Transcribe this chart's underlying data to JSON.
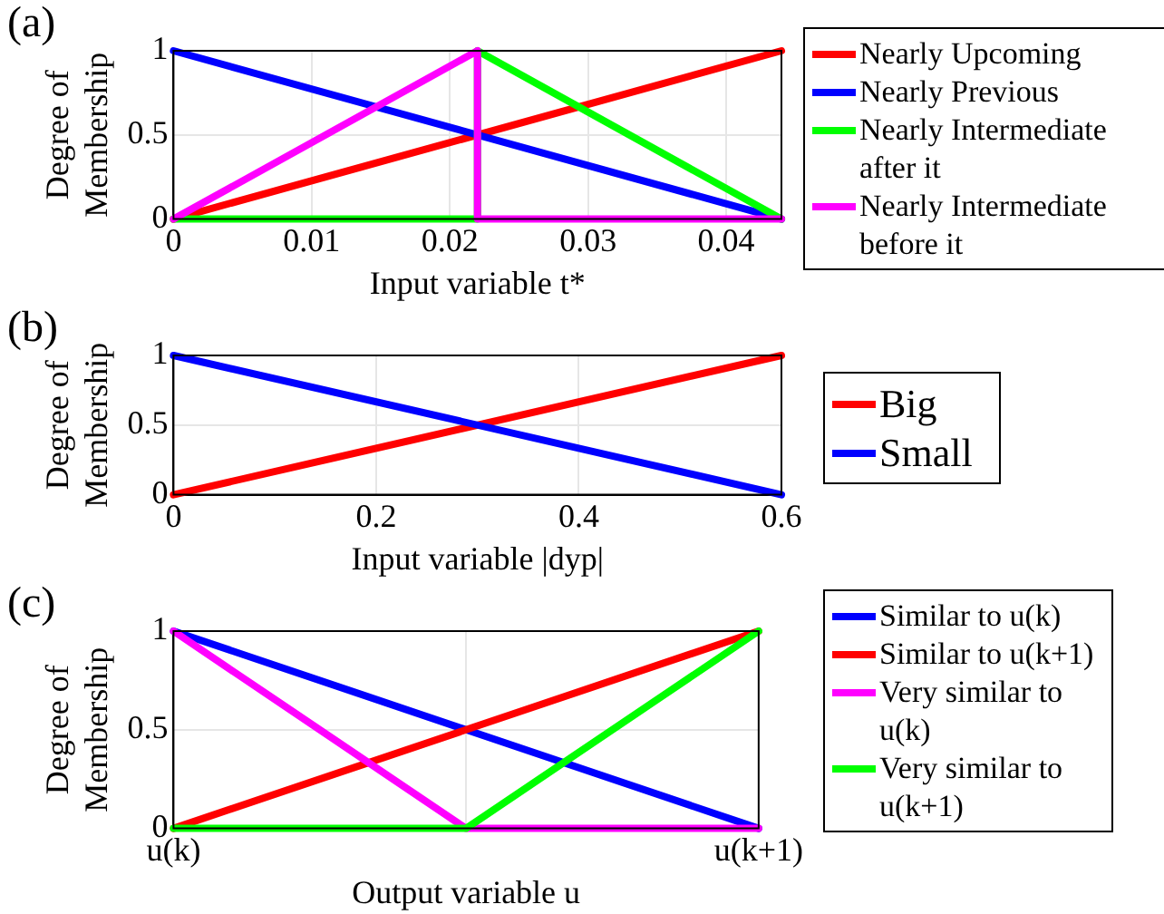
{
  "chart_data": [
    {
      "type": "line",
      "title": "(a)",
      "xlabel": "Input variable t*",
      "ylabel": "Degree of Membership",
      "xlim": [
        0,
        0.044
      ],
      "xticks": [
        0,
        0.01,
        0.02,
        0.03,
        0.04
      ],
      "ylim": [
        0,
        1
      ],
      "yticks": [
        0,
        0.5,
        1
      ],
      "grid": true,
      "legend": "right",
      "marker": "none",
      "line_style": "solid",
      "series": [
        {
          "name": "Nearly Upcoming",
          "color": "#ff0000",
          "x": [
            0,
            0.044
          ],
          "values": [
            0,
            1
          ]
        },
        {
          "name": "Nearly Previous",
          "color": "#0000ff",
          "x": [
            0,
            0.044
          ],
          "values": [
            1,
            0
          ]
        },
        {
          "name": "Nearly Intermediate after it",
          "color": "#00ff00",
          "x": [
            0,
            0.022,
            0.022,
            0.044
          ],
          "values": [
            0,
            0,
            1,
            0
          ]
        },
        {
          "name": "Nearly Intermediate before it",
          "color": "#ff00ff",
          "x": [
            0,
            0.022,
            0.022,
            0.044
          ],
          "values": [
            0,
            1,
            0,
            0
          ]
        }
      ]
    },
    {
      "type": "line",
      "title": "(b)",
      "xlabel": "Input variable |dyp|",
      "ylabel": "Degree of Membership",
      "xlim": [
        0,
        0.6
      ],
      "xticks": [
        0,
        0.2,
        0.4,
        0.6
      ],
      "ylim": [
        0,
        1
      ],
      "yticks": [
        0,
        0.5,
        1
      ],
      "grid": true,
      "legend": "right",
      "marker": "none",
      "line_style": "solid",
      "series": [
        {
          "name": "Big",
          "color": "#ff0000",
          "x": [
            0,
            0.6
          ],
          "values": [
            0,
            1
          ]
        },
        {
          "name": "Small",
          "color": "#0000ff",
          "x": [
            0,
            0.6
          ],
          "values": [
            1,
            0
          ]
        }
      ]
    },
    {
      "type": "line",
      "title": "(c)",
      "xlabel": "Output variable u",
      "ylabel": "Degree of Membership",
      "categories": [
        "u(k)",
        null,
        "u(k+1)"
      ],
      "ylim": [
        0,
        1
      ],
      "yticks": [
        0,
        0.5,
        1
      ],
      "grid": true,
      "legend": "right",
      "marker": "none",
      "line_style": "solid",
      "series": [
        {
          "name": "Similar to u(k)",
          "color": "#0000ff",
          "values": [
            1,
            0.5,
            0
          ]
        },
        {
          "name": "Similar to u(k+1)",
          "color": "#ff0000",
          "values": [
            0,
            0.5,
            1
          ]
        },
        {
          "name": "Very similar to u(k)",
          "color": "#ff00ff",
          "values": [
            1,
            0,
            0
          ]
        },
        {
          "name": "Very similar to u(k+1)",
          "color": "#00ff00",
          "values": [
            0,
            0,
            1
          ]
        }
      ]
    }
  ]
}
